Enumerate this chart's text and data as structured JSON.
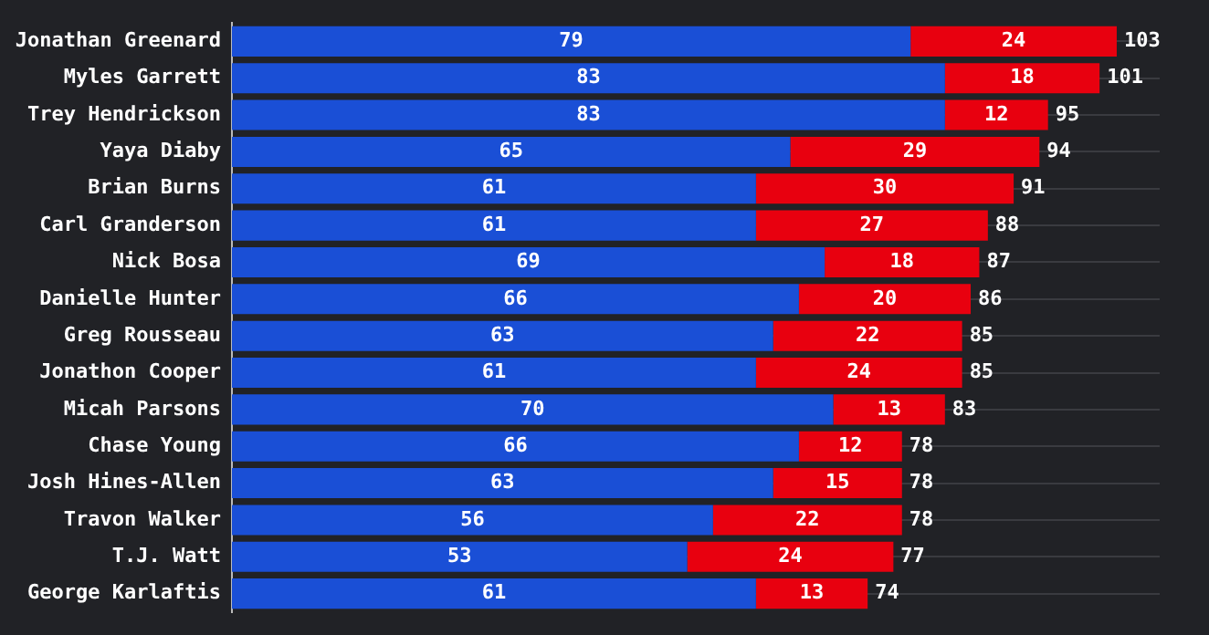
{
  "chart_data": {
    "type": "bar",
    "orientation": "horizontal",
    "stacked": true,
    "data_labels": true,
    "grid": "y",
    "legend": false,
    "tick_labels": "y",
    "categories": [
      "Jonathan Greenard",
      "Myles Garrett",
      "Trey Hendrickson",
      "Yaya Diaby",
      "Brian Burns",
      "Carl Granderson",
      "Nick Bosa",
      "Danielle Hunter",
      "Greg Rousseau",
      "Jonathon Cooper",
      "Micah Parsons",
      "Chase Young",
      "Josh Hines-Allen",
      "Travon Walker",
      "T.J. Watt",
      "George Karlaftis"
    ],
    "xlim": [
      0,
      108
    ],
    "series": [
      {
        "color": "#1a4fd6",
        "values": [
          79,
          83,
          83,
          65,
          61,
          61,
          69,
          66,
          63,
          61,
          70,
          66,
          63,
          56,
          53,
          61
        ]
      },
      {
        "color": "#e8000f",
        "values": [
          24,
          18,
          12,
          29,
          30,
          27,
          18,
          20,
          22,
          24,
          13,
          12,
          15,
          22,
          24,
          13
        ]
      }
    ],
    "totals": [
      "103",
      "101",
      "95",
      "94",
      "91",
      "88",
      "87",
      "86",
      "85",
      "85",
      "83",
      "78",
      "78",
      "78",
      "77",
      "74"
    ]
  }
}
